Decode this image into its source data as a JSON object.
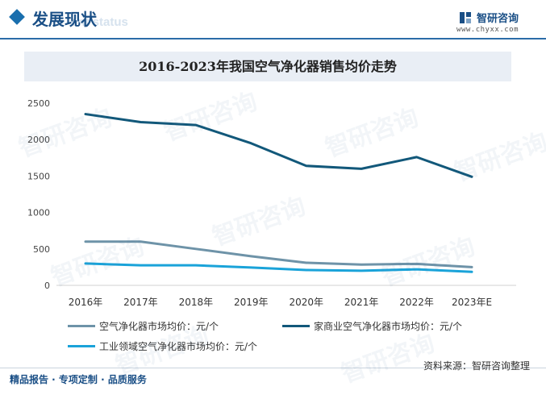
{
  "header": {
    "title": "发展现状",
    "ghost_text": "ent status",
    "brand_name": "智研咨询",
    "brand_url": "www.chyxx.com",
    "accent_color": "#1a6fae",
    "logo_icon": "chyxx-logo-icon"
  },
  "chart_data": {
    "type": "line",
    "title": "2016-2023年我国空气净化器销售均价走势",
    "xlabel": "",
    "ylabel": "",
    "categories": [
      "2016年",
      "2017年",
      "2018年",
      "2019年",
      "2020年",
      "2021年",
      "2022年",
      "2023年E"
    ],
    "ylim": [
      0,
      2500
    ],
    "yticks": [
      0,
      500,
      1000,
      1500,
      2000,
      2500
    ],
    "grid": false,
    "legend_position": "bottom",
    "series": [
      {
        "name": "空气净化器市场均价：元/个",
        "color": "#6e93a8",
        "values": [
          600,
          600,
          500,
          400,
          310,
          285,
          295,
          250
        ]
      },
      {
        "name": "家商业空气净化器市场均价：元/个",
        "color": "#12587a",
        "values": [
          2350,
          2240,
          2200,
          1950,
          1640,
          1600,
          1760,
          1490
        ]
      },
      {
        "name": "工业领域空气净化器市场均价：元/个",
        "color": "#1aa3d9",
        "values": [
          300,
          275,
          275,
          245,
          210,
          200,
          220,
          185
        ]
      }
    ]
  },
  "footer": {
    "left_text": "精品报告 · 专项定制 · 品质服务",
    "source_text": "资料来源：智研咨询整理"
  },
  "watermark_text": "智研咨询"
}
